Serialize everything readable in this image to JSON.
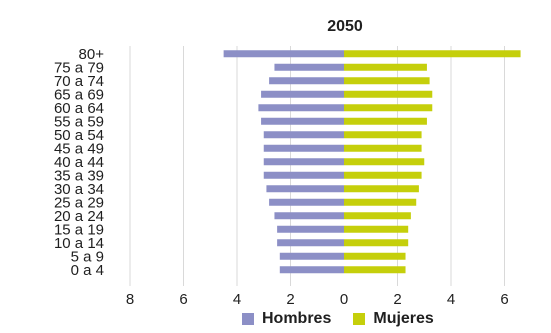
{
  "chart_data": {
    "type": "bar",
    "orientation": "horizontal",
    "title": "2050",
    "categories": [
      "80+",
      "75 a 79",
      "70 a 74",
      "65 a 69",
      "60 a 64",
      "55 a 59",
      "50 a 54",
      "45 a 49",
      "40 a 44",
      "35 a 39",
      "30 a 34",
      "25 a 29",
      "20 a 24",
      "15 a 19",
      "10 a 14",
      "5 a 9",
      "0 a 4"
    ],
    "series": [
      {
        "name": "Hombres",
        "color": "#8c8fc6",
        "values": [
          4.5,
          2.6,
          2.8,
          3.1,
          3.2,
          3.1,
          3.0,
          3.0,
          3.0,
          3.0,
          2.9,
          2.8,
          2.6,
          2.5,
          2.5,
          2.4,
          2.4
        ]
      },
      {
        "name": "Mujeres",
        "color": "#c5cf0b",
        "values": [
          6.6,
          3.1,
          3.2,
          3.3,
          3.3,
          3.1,
          2.9,
          2.9,
          3.0,
          2.9,
          2.8,
          2.7,
          2.5,
          2.4,
          2.4,
          2.3,
          2.3
        ]
      }
    ],
    "xaxis": {
      "range": [
        -9,
        7
      ],
      "ticks": [
        -8,
        -6,
        -4,
        -2,
        0,
        2,
        4,
        6
      ],
      "tick_labels": [
        "8",
        "6",
        "4",
        "2",
        "0",
        "2",
        "4",
        "6"
      ]
    },
    "grid": "vertical",
    "legend_position": "bottom"
  }
}
